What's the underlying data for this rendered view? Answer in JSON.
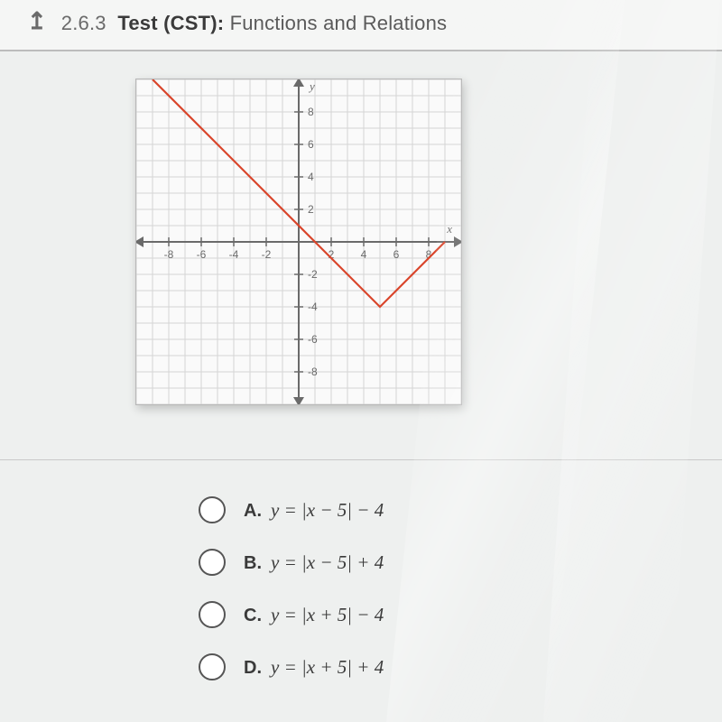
{
  "header": {
    "section_number": "2.6.3",
    "test_label_bold": "Test (CST):",
    "test_label_rest": "Functions and Relations"
  },
  "graph": {
    "type": "line",
    "background_color": "#fafafa",
    "grid_color": "#d4d4d4",
    "axis_color": "#6a6a6a",
    "axis_label_color": "#6a6a6a",
    "border_color": "#b8b8b8",
    "line_color": "#d9452b",
    "line_width": 2.2,
    "xlim": [
      -10,
      10
    ],
    "ylim": [
      -10,
      10
    ],
    "tick_step": 2,
    "tick_labels_x": [
      "-8",
      "-6",
      "-4",
      "-2",
      "",
      "2",
      "4",
      "6",
      "8"
    ],
    "tick_labels_y": [
      "-8",
      "-6",
      "-4",
      "-2",
      "",
      "2",
      "4",
      "6",
      "8"
    ],
    "y_axis_label": "y",
    "x_axis_label": "x",
    "label_fontsize": 12,
    "curve_points": [
      {
        "x": -9,
        "y": 10
      },
      {
        "x": 5,
        "y": -4
      },
      {
        "x": 9,
        "y": 0
      }
    ]
  },
  "choices": [
    {
      "letter": "A.",
      "equation": "y = |x − 5| − 4"
    },
    {
      "letter": "B.",
      "equation": "y = |x − 5| + 4"
    },
    {
      "letter": "C.",
      "equation": "y = |x + 5| − 4"
    },
    {
      "letter": "D.",
      "equation": "y = |x + 5| + 4"
    }
  ],
  "styling": {
    "page_bg": "#eef0ef",
    "header_bg": "#f5f6f5",
    "header_border": "#bcbcbc",
    "radio_border": "#555555",
    "choice_fontsize": 20
  }
}
